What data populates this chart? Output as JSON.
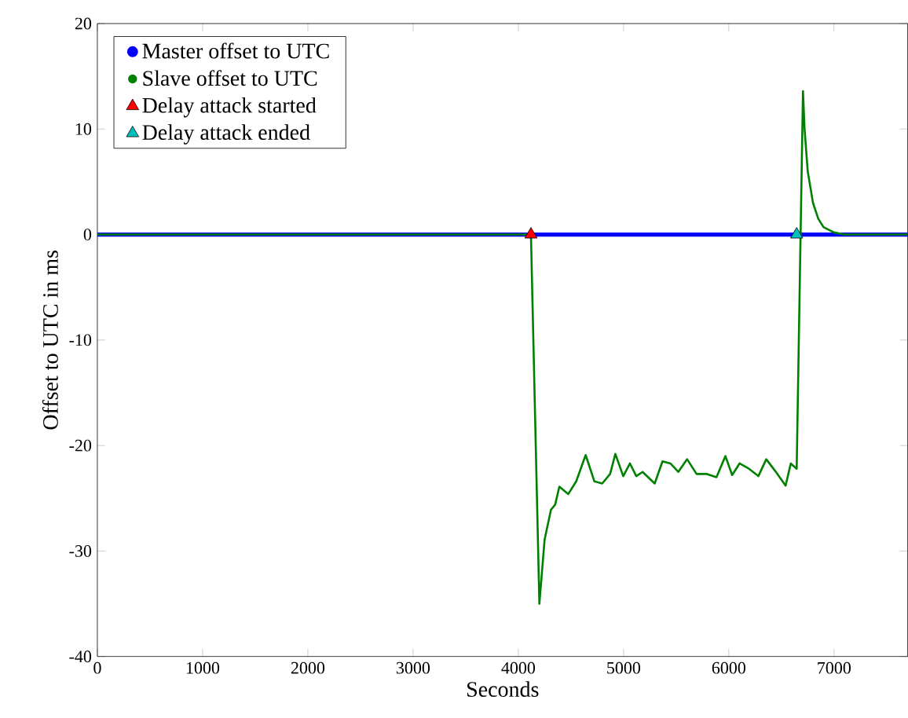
{
  "chart_data": {
    "type": "line",
    "xlabel": "Seconds",
    "ylabel": "Offset to UTC in ms",
    "xlim": [
      0,
      7700
    ],
    "ylim": [
      -40,
      20
    ],
    "xticks": [
      0,
      1000,
      2000,
      3000,
      4000,
      5000,
      6000,
      7000
    ],
    "yticks": [
      -40,
      -30,
      -20,
      -10,
      0,
      10,
      20
    ],
    "grid": false,
    "legend": "top left",
    "series": [
      {
        "name": "Master offset to UTC",
        "color": "#0000ff",
        "x": [
          0,
          7700
        ],
        "values": [
          0,
          0
        ]
      },
      {
        "name": "Slave offset to UTC",
        "color": "#008000",
        "x": [
          0,
          4120,
          4200,
          4250,
          4310,
          4350,
          4390,
          4475,
          4550,
          4640,
          4723,
          4797,
          4872,
          4922,
          4997,
          5061,
          5121,
          5181,
          5296,
          5370,
          5445,
          5520,
          5604,
          5694,
          5793,
          5883,
          5968,
          6032,
          6102,
          6192,
          6281,
          6356,
          6440,
          6540,
          6589,
          6645,
          6705,
          6720,
          6750,
          6800,
          6850,
          6900,
          7000,
          7100,
          7700
        ],
        "values": [
          0,
          0,
          -35.0,
          -28.9,
          -26.1,
          -25.6,
          -23.9,
          -24.6,
          -23.4,
          -20.9,
          -23.4,
          -23.6,
          -22.7,
          -20.8,
          -22.9,
          -21.7,
          -22.9,
          -22.5,
          -23.6,
          -21.5,
          -21.7,
          -22.5,
          -21.3,
          -22.7,
          -22.7,
          -23.0,
          -21.0,
          -22.8,
          -21.7,
          -22.2,
          -22.9,
          -21.3,
          -22.4,
          -23.8,
          -21.7,
          -22.2,
          13.6,
          10,
          6,
          3,
          1.5,
          0.7,
          0.2,
          0,
          0
        ]
      },
      {
        "name": "Delay attack started",
        "type": "scatter",
        "marker": "triangle",
        "color": "#ff0000",
        "x": [
          4120
        ],
        "values": [
          0
        ]
      },
      {
        "name": "Delay attack ended",
        "type": "scatter",
        "marker": "triangle",
        "color": "#00bfbf",
        "x": [
          6645
        ],
        "values": [
          0
        ]
      }
    ]
  }
}
